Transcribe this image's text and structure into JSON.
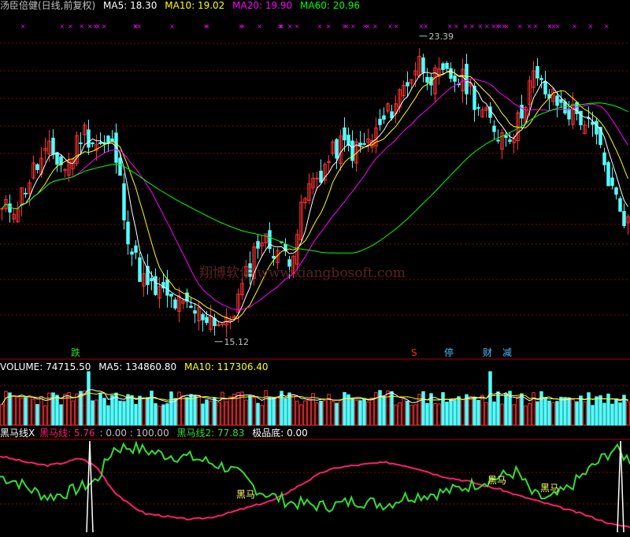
{
  "header": {
    "stock_name": "汤臣倍健(日线,前复权)",
    "ma5": "MA5: 18.30",
    "ma10": "MA10: 19.02",
    "ma20": "MA20: 19.90",
    "ma60": "MA60: 20.96"
  },
  "price_panel": {
    "high_label": "23.39",
    "low_label": "15.12",
    "event_markers": [
      {
        "text": "跌",
        "color": "#22dd22"
      },
      {
        "text": "S",
        "color": "#ff2222"
      },
      {
        "text": "停",
        "color": "#44bbff"
      },
      {
        "text": "财",
        "color": "#44bbff"
      },
      {
        "text": "减",
        "color": "#44bbff"
      }
    ]
  },
  "volume_panel": {
    "volume": "VOLUME: 74715.50",
    "ma5": "MA5: 134860.80",
    "ma10": "MA10: 117306.40"
  },
  "indicator_panel": {
    "name": "黑马线X",
    "line1": "黑马线: 5.76",
    "values": ": 0.00 : 100.00",
    "line2": "黑马线2: 77.83",
    "bottom": "极品底: 0.00",
    "signal_labels": [
      "黑马",
      "黑马",
      "黑马"
    ]
  },
  "watermark": "翔博软件 www.xiangbosoft.com",
  "colors": {
    "up": "#ff3232",
    "down": "#54fcfc",
    "ma5": "#ffffff",
    "ma10": "#ffff00",
    "ma20": "#ff00ff",
    "ma60": "#00ff00",
    "indicator_red": "#ff1c6c",
    "indicator_green": "#33dd33",
    "grid": "#8b0000"
  },
  "chart_data": [
    {
      "type": "candlestick",
      "title": "汤臣倍健(日线,前复权)",
      "ylim": [
        14.5,
        24.2
      ],
      "series": [
        {
          "name": "MA5",
          "last": 18.3
        },
        {
          "name": "MA10",
          "last": 19.02
        },
        {
          "name": "MA20",
          "last": 19.9
        },
        {
          "name": "MA60",
          "last": 20.96
        }
      ],
      "annotations": [
        {
          "label": "23.39",
          "type": "high"
        },
        {
          "label": "15.12",
          "type": "low"
        }
      ],
      "close_path": [
        18.6,
        18.9,
        19.8,
        20.3,
        19.8,
        20.9,
        20.5,
        20.4,
        17.6,
        16.5,
        16.3,
        16.0,
        15.8,
        15.7,
        15.4,
        16.5,
        17.9,
        17.6,
        17.4,
        19.2,
        19.8,
        20.5,
        20.3,
        20.6,
        21.3,
        22.1,
        22.8,
        22.3,
        22.4,
        22.2,
        21.3,
        20.8,
        20.9,
        22.4,
        21.9,
        21.5,
        21.3,
        20.7,
        19.2,
        18.3
      ]
    },
    {
      "type": "bar",
      "title": "VOLUME",
      "series": [
        {
          "name": "VOLUME",
          "last": 74715.5
        },
        {
          "name": "MA5",
          "last": 134860.8
        },
        {
          "name": "MA10",
          "last": 117306.4
        }
      ]
    },
    {
      "type": "line",
      "title": "黑马线X",
      "ylim": [
        0,
        100
      ],
      "series": [
        {
          "name": "黑马线",
          "last": 5.76,
          "values": [
            82,
            78,
            74,
            72,
            75,
            80,
            70,
            45,
            30,
            20,
            18,
            15,
            14,
            16,
            20,
            25,
            30,
            35,
            45,
            55,
            65,
            70,
            72,
            74,
            75,
            72,
            68,
            62,
            58,
            55,
            50,
            46,
            40,
            35,
            30,
            25,
            20,
            14,
            8,
            6
          ]
        },
        {
          "name": "黑马线2",
          "last": 77.83,
          "values": [
            60,
            55,
            45,
            38,
            42,
            48,
            56,
            90,
            92,
            88,
            84,
            82,
            80,
            75,
            70,
            60,
            45,
            38,
            32,
            30,
            28,
            30,
            34,
            32,
            30,
            38,
            40,
            42,
            45,
            50,
            55,
            60,
            65,
            40,
            35,
            45,
            60,
            75,
            90,
            78
          ]
        },
        {
          "name": "极品底",
          "last": 0.0
        }
      ]
    }
  ]
}
